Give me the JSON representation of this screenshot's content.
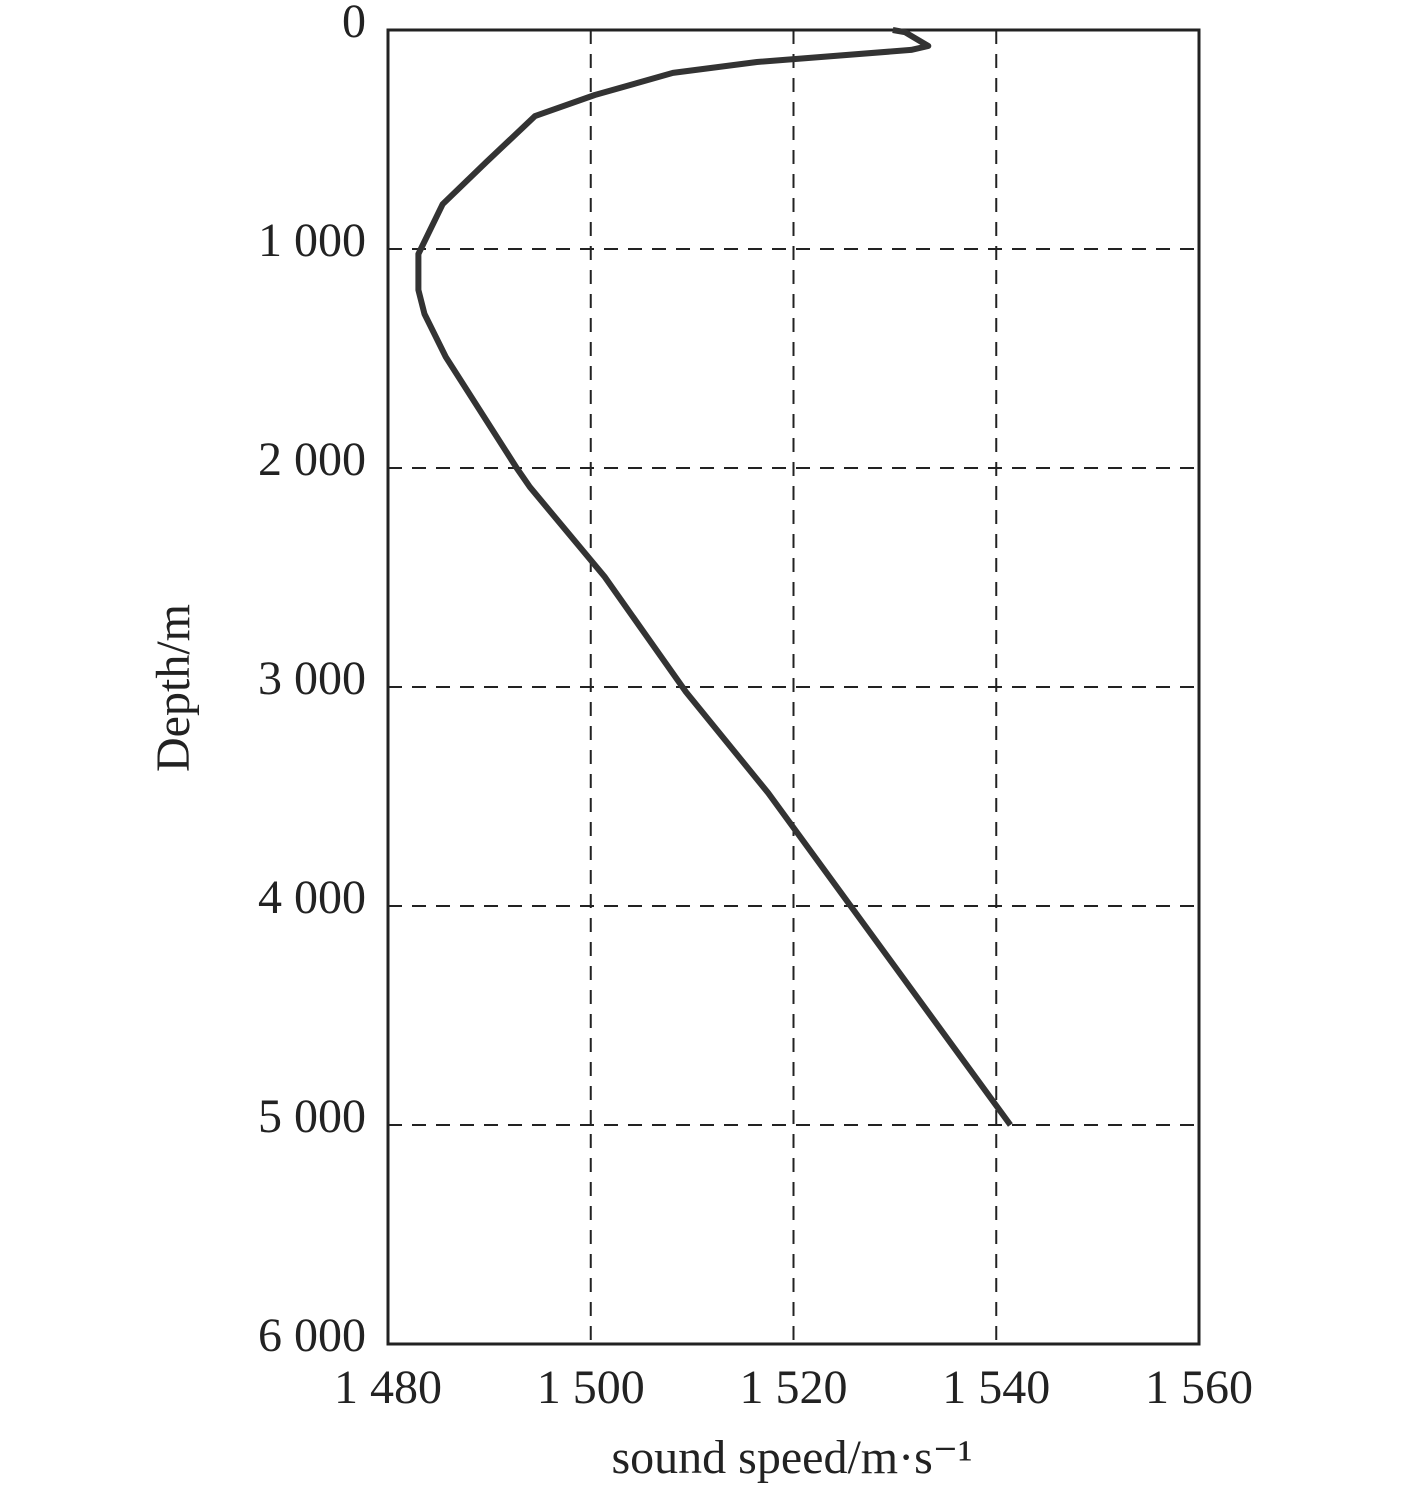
{
  "chart_data": {
    "type": "line",
    "xlabel": "sound speed/m·s⁻¹",
    "ylabel": "Depth/m",
    "x": [
      1529.8,
      1531,
      1533.3,
      1531.6,
      1516.4,
      1508.1,
      1500.4,
      1494.5,
      1489.7,
      1485.4,
      1483,
      1483,
      1483.6,
      1485.7,
      1492.7,
      1494,
      1501.4,
      1509.4,
      1517.5,
      1541.4
    ],
    "series": [
      {
        "name": null,
        "color": "#333333",
        "values": [
          0,
          10,
          73,
          91,
          146,
          196,
          297,
          393,
          603,
          795,
          1023,
          1187,
          1297,
          1493,
          2000,
          2087,
          2498,
          3023,
          3484,
          5000
        ]
      }
    ],
    "xlim": [
      1480,
      1560
    ],
    "xticks": [
      {
        "value": 1480,
        "label": "1 480"
      },
      {
        "value": 1500,
        "label": "1 500"
      },
      {
        "value": 1520,
        "label": "1 520"
      },
      {
        "value": 1540,
        "label": "1 540"
      },
      {
        "value": 1560,
        "label": "1 560"
      }
    ],
    "ylim": [
      0,
      6000
    ],
    "yticks": [
      0,
      {
        "value": 1000,
        "label": "1 000"
      },
      {
        "value": 2000,
        "label": "2 000"
      },
      {
        "value": 3000,
        "label": "3 000"
      },
      {
        "value": 4000,
        "label": "4 000"
      },
      {
        "value": 5000,
        "label": "5 000"
      },
      {
        "value": 6000,
        "label": "6 000"
      }
    ],
    "y_inverted": true,
    "grid": true
  }
}
